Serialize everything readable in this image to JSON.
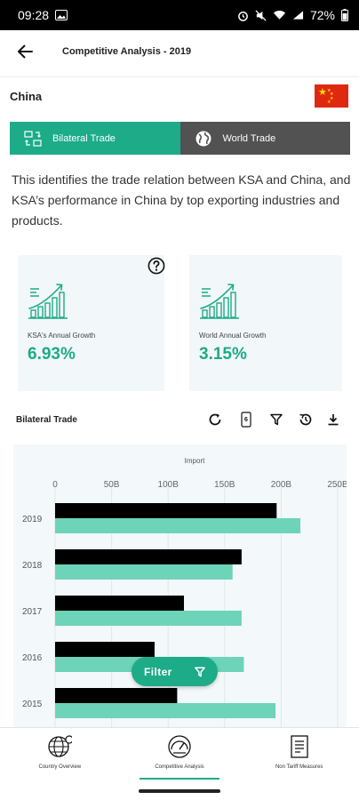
{
  "status_bar": {
    "time": "09:28",
    "battery": "72%"
  },
  "header": {
    "title": "Competitive Analysis - 2019"
  },
  "country": {
    "name": "China"
  },
  "tabs": [
    {
      "label": "Bilateral Trade",
      "active": true
    },
    {
      "label": "World Trade",
      "active": false
    }
  ],
  "description": "This identifies the trade relation between KSA and China, and KSA’s performance in China by top exporting industries and products.",
  "cards": [
    {
      "label": "KSA's Annual Growth",
      "value": "6.93%"
    },
    {
      "label": "World Annual Growth",
      "value": "3.15%"
    }
  ],
  "section": {
    "title": "Bilateral Trade",
    "badge": "6"
  },
  "chart_data": {
    "type": "bar",
    "orientation": "horizontal",
    "title": "Import",
    "categories": [
      "2019",
      "2018",
      "2017",
      "2016",
      "2015"
    ],
    "series": [
      {
        "values": [
          196,
          165,
          114,
          88,
          108
        ]
      },
      {
        "values": [
          217,
          157,
          165,
          167,
          195
        ]
      }
    ],
    "x_ticks": [
      "0",
      "50B",
      "100B",
      "150B",
      "200B",
      "250B"
    ],
    "xlim": [
      0,
      250
    ],
    "grid": true,
    "colors": [
      "#000000",
      "#6dd4ba"
    ]
  },
  "filter_button": {
    "label": "Filter"
  },
  "bottom_nav": [
    {
      "label": "Country Overview",
      "active": false
    },
    {
      "label": "Competitive Analysis",
      "active": true
    },
    {
      "label": "Non Tariff Measures",
      "active": false
    }
  ],
  "colors": {
    "accent": "#1dab88",
    "inactive_tab": "#525252",
    "card_bg": "#f2f7f9",
    "flag_red": "#de2910"
  }
}
